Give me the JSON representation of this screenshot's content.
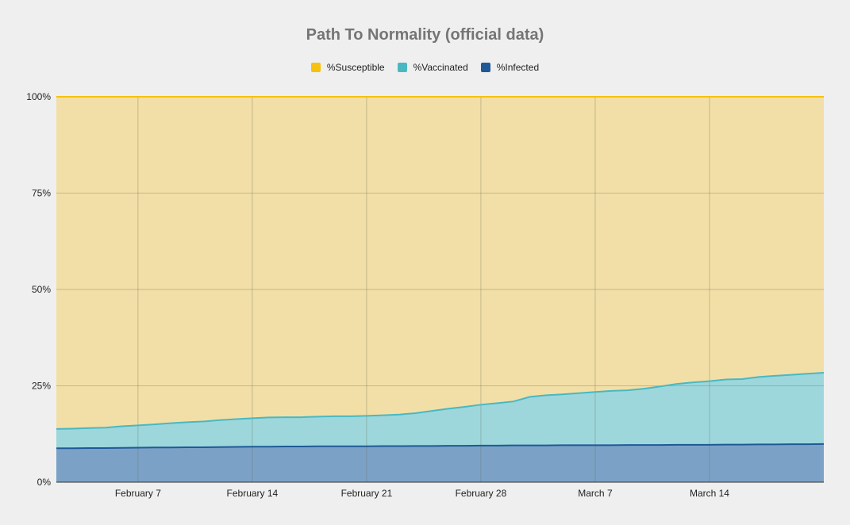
{
  "chart_data": {
    "type": "area",
    "stacked": true,
    "title": "Path To Normality (official data)",
    "xlabel": "",
    "ylabel": "",
    "ylim": [
      0,
      100
    ],
    "y_ticks": [
      "0%",
      "25%",
      "50%",
      "75%",
      "100%"
    ],
    "x_ticks": [
      "February 7",
      "February 14",
      "February 21",
      "February 28",
      "March 7",
      "March 14"
    ],
    "legend_position": "top",
    "grid": true,
    "x": [
      "Feb 2",
      "Feb 3",
      "Feb 4",
      "Feb 5",
      "Feb 6",
      "Feb 7",
      "Feb 8",
      "Feb 9",
      "Feb 10",
      "Feb 11",
      "Feb 12",
      "Feb 13",
      "Feb 14",
      "Feb 15",
      "Feb 16",
      "Feb 17",
      "Feb 18",
      "Feb 19",
      "Feb 20",
      "Feb 21",
      "Feb 22",
      "Feb 23",
      "Feb 24",
      "Feb 25",
      "Feb 26",
      "Feb 27",
      "Feb 28",
      "Mar 1",
      "Mar 2",
      "Mar 3",
      "Mar 4",
      "Mar 5",
      "Mar 6",
      "Mar 7",
      "Mar 8",
      "Mar 9",
      "Mar 10",
      "Mar 11",
      "Mar 12",
      "Mar 13",
      "Mar 14",
      "Mar 15",
      "Mar 16",
      "Mar 17",
      "Mar 18",
      "Mar 19",
      "Mar 20",
      "Mar 21"
    ],
    "series": [
      {
        "name": "%Infected",
        "color": "#1f5a96",
        "values": [
          8.8,
          8.8,
          8.85,
          8.85,
          8.9,
          8.95,
          9.0,
          9.0,
          9.05,
          9.05,
          9.1,
          9.15,
          9.2,
          9.2,
          9.25,
          9.25,
          9.3,
          9.3,
          9.3,
          9.3,
          9.35,
          9.35,
          9.4,
          9.4,
          9.45,
          9.45,
          9.5,
          9.5,
          9.55,
          9.55,
          9.55,
          9.6,
          9.6,
          9.6,
          9.6,
          9.65,
          9.65,
          9.65,
          9.7,
          9.7,
          9.7,
          9.75,
          9.75,
          9.8,
          9.8,
          9.85,
          9.85,
          9.9
        ]
      },
      {
        "name": "%Vaccinated",
        "color": "#4ab8c1",
        "values": [
          5.0,
          5.1,
          5.2,
          5.3,
          5.6,
          5.8,
          6.0,
          6.3,
          6.5,
          6.7,
          7.0,
          7.2,
          7.4,
          7.6,
          7.6,
          7.6,
          7.7,
          7.8,
          7.8,
          7.9,
          8.0,
          8.2,
          8.5,
          9.1,
          9.6,
          10.1,
          10.6,
          11.0,
          11.4,
          12.6,
          13.0,
          13.2,
          13.5,
          13.8,
          14.1,
          14.2,
          14.6,
          15.2,
          15.8,
          16.2,
          16.5,
          16.9,
          17.0,
          17.5,
          17.8,
          18.0,
          18.3,
          18.5
        ]
      },
      {
        "name": "%Susceptible",
        "color": "#f6c10f",
        "values": [
          86.2,
          86.1,
          85.95,
          85.85,
          85.5,
          85.25,
          85.0,
          84.7,
          84.45,
          84.25,
          83.9,
          83.65,
          83.4,
          83.2,
          83.15,
          83.15,
          83.0,
          82.9,
          82.9,
          82.8,
          82.65,
          82.45,
          82.1,
          81.5,
          80.95,
          80.45,
          79.9,
          79.5,
          79.05,
          77.85,
          77.45,
          77.2,
          76.9,
          76.6,
          76.3,
          76.15,
          75.75,
          75.15,
          74.5,
          74.1,
          73.8,
          73.35,
          73.25,
          72.7,
          72.4,
          72.15,
          71.85,
          71.6
        ]
      }
    ]
  }
}
